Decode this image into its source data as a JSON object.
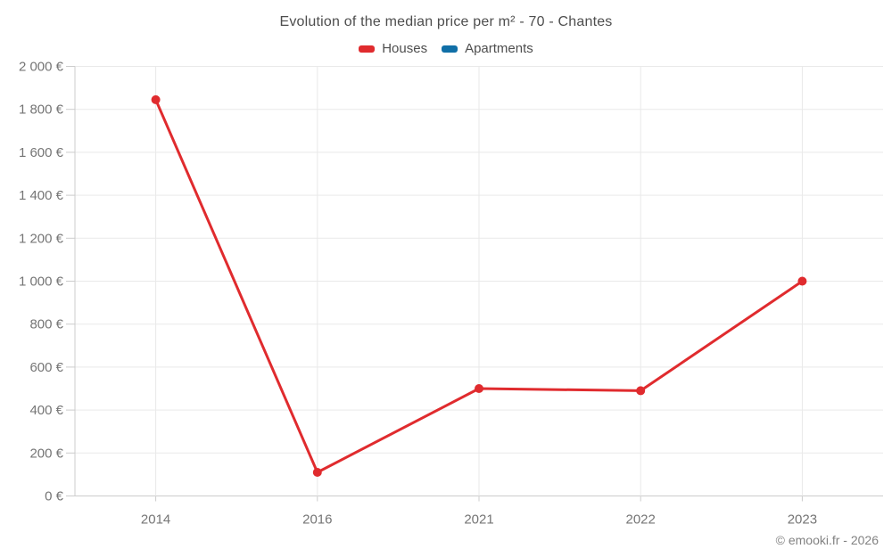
{
  "title": "Evolution of the median price per m² - 70 - Chantes",
  "legend": {
    "items": [
      {
        "label": "Houses",
        "color": "#e02b2e"
      },
      {
        "label": "Apartments",
        "color": "#106fa7"
      }
    ]
  },
  "footer": "© emooki.fr - 2026",
  "chart_data": {
    "type": "line",
    "title": "Evolution of the median price per m² - 70 - Chantes",
    "categories": [
      "2014",
      "2016",
      "2021",
      "2022",
      "2023"
    ],
    "series": [
      {
        "name": "Houses",
        "color": "#e02b2e",
        "values": [
          1845,
          110,
          500,
          490,
          1000
        ]
      },
      {
        "name": "Apartments",
        "color": "#106fa7",
        "values": []
      }
    ],
    "xlabel": "",
    "ylabel": "",
    "ylim": [
      0,
      2000
    ],
    "y_tick_step": 200,
    "y_tick_labels": [
      "0 €",
      "200 €",
      "400 €",
      "600 €",
      "800 €",
      "1 000 €",
      "1 200 €",
      "1 400 €",
      "1 600 €",
      "1 800 €",
      "2 000 €"
    ],
    "grid": true,
    "legend_position": "top"
  },
  "colors": {
    "grid": "#e9e9e9",
    "axis": "#cccccc",
    "axis_label": "#757575",
    "title_text": "#4e4e4e",
    "footer_text": "#828282",
    "background": "#ffffff"
  }
}
